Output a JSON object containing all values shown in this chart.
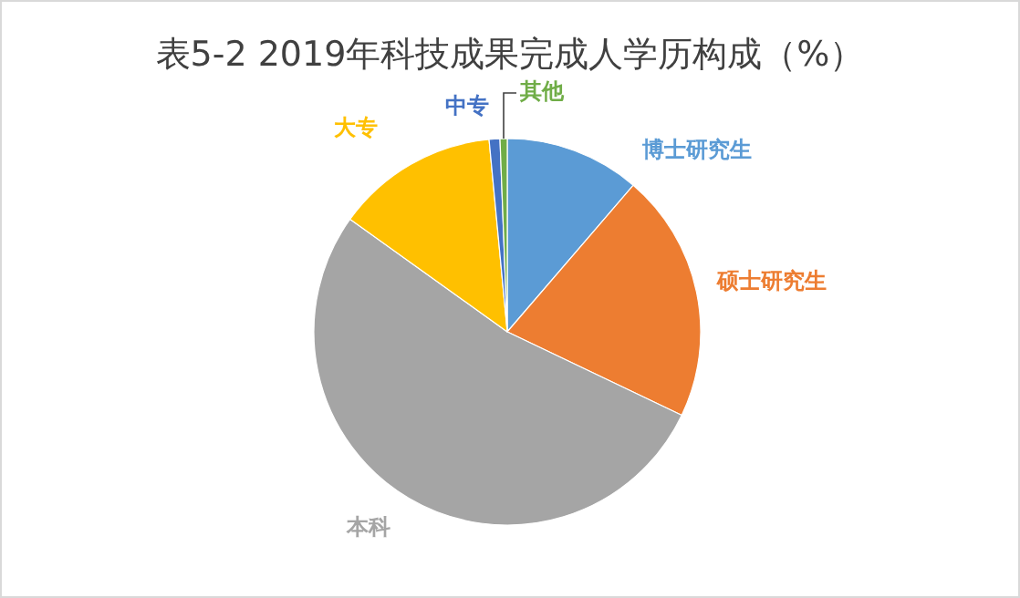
{
  "chart_data": {
    "type": "pie",
    "title": "表5-2 2019年科技成果完成人学历构成（%）",
    "categories": [
      "博士研究生",
      "硕士研究生",
      "本科",
      "大专",
      "中专",
      "其他"
    ],
    "values": [
      11.3,
      20.8,
      52.8,
      13.6,
      0.9,
      0.6
    ],
    "colors": [
      "#5b9bd5",
      "#ed7d31",
      "#a5a5a5",
      "#ffc000",
      "#4472c4",
      "#70ad47"
    ]
  }
}
